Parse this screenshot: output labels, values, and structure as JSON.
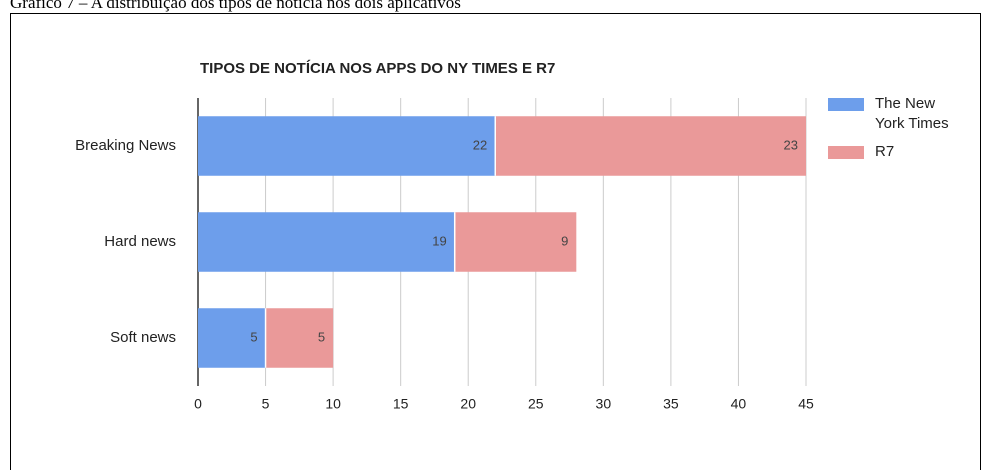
{
  "caption": "Gráfico 7 – A distribuição dos tipos de notícia nos dois aplicativos",
  "chart_data": {
    "type": "stacked-horizontal-bar",
    "title": "TIPOS DE NOTÍCIA NOS APPS DO NY TIMES E R7",
    "categories": [
      "Breaking News",
      "Hard news",
      "Soft news"
    ],
    "series": [
      {
        "name": "The New York Times",
        "color": "#6d9eeb",
        "values": [
          22,
          19,
          5
        ]
      },
      {
        "name": "R7",
        "color": "#ea9999",
        "values": [
          23,
          9,
          5
        ]
      }
    ],
    "xlim": [
      0,
      45
    ],
    "xticks": [
      0,
      5,
      10,
      15,
      20,
      25,
      30,
      35,
      40,
      45
    ],
    "grid": true,
    "legend": "right"
  }
}
